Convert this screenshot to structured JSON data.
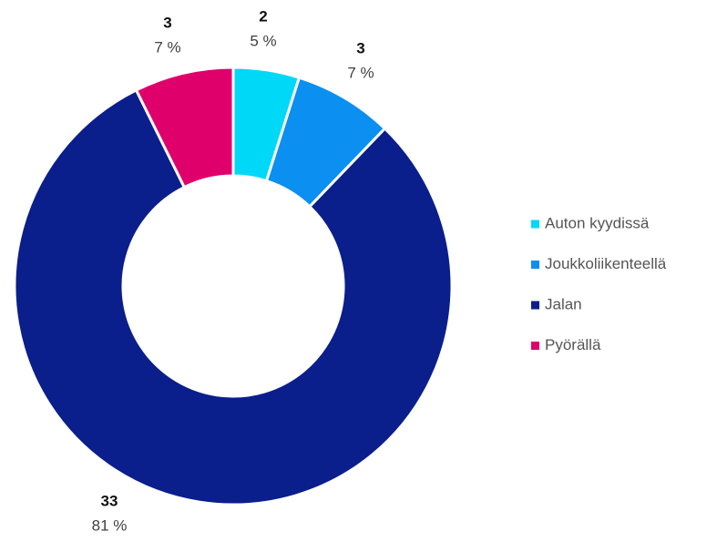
{
  "chart_data": {
    "type": "donut",
    "categories": [
      "Auton kyydissä",
      "Joukkoliikenteellä",
      "Jalan",
      "Pyörällä"
    ],
    "values": [
      2,
      3,
      33,
      3
    ],
    "percent_labels": [
      "5 %",
      "7 %",
      "81 %",
      "7 %"
    ],
    "colors": [
      "#00d8f7",
      "#0b8ff0",
      "#0a1e8c",
      "#e0006c"
    ],
    "legend": "right"
  }
}
